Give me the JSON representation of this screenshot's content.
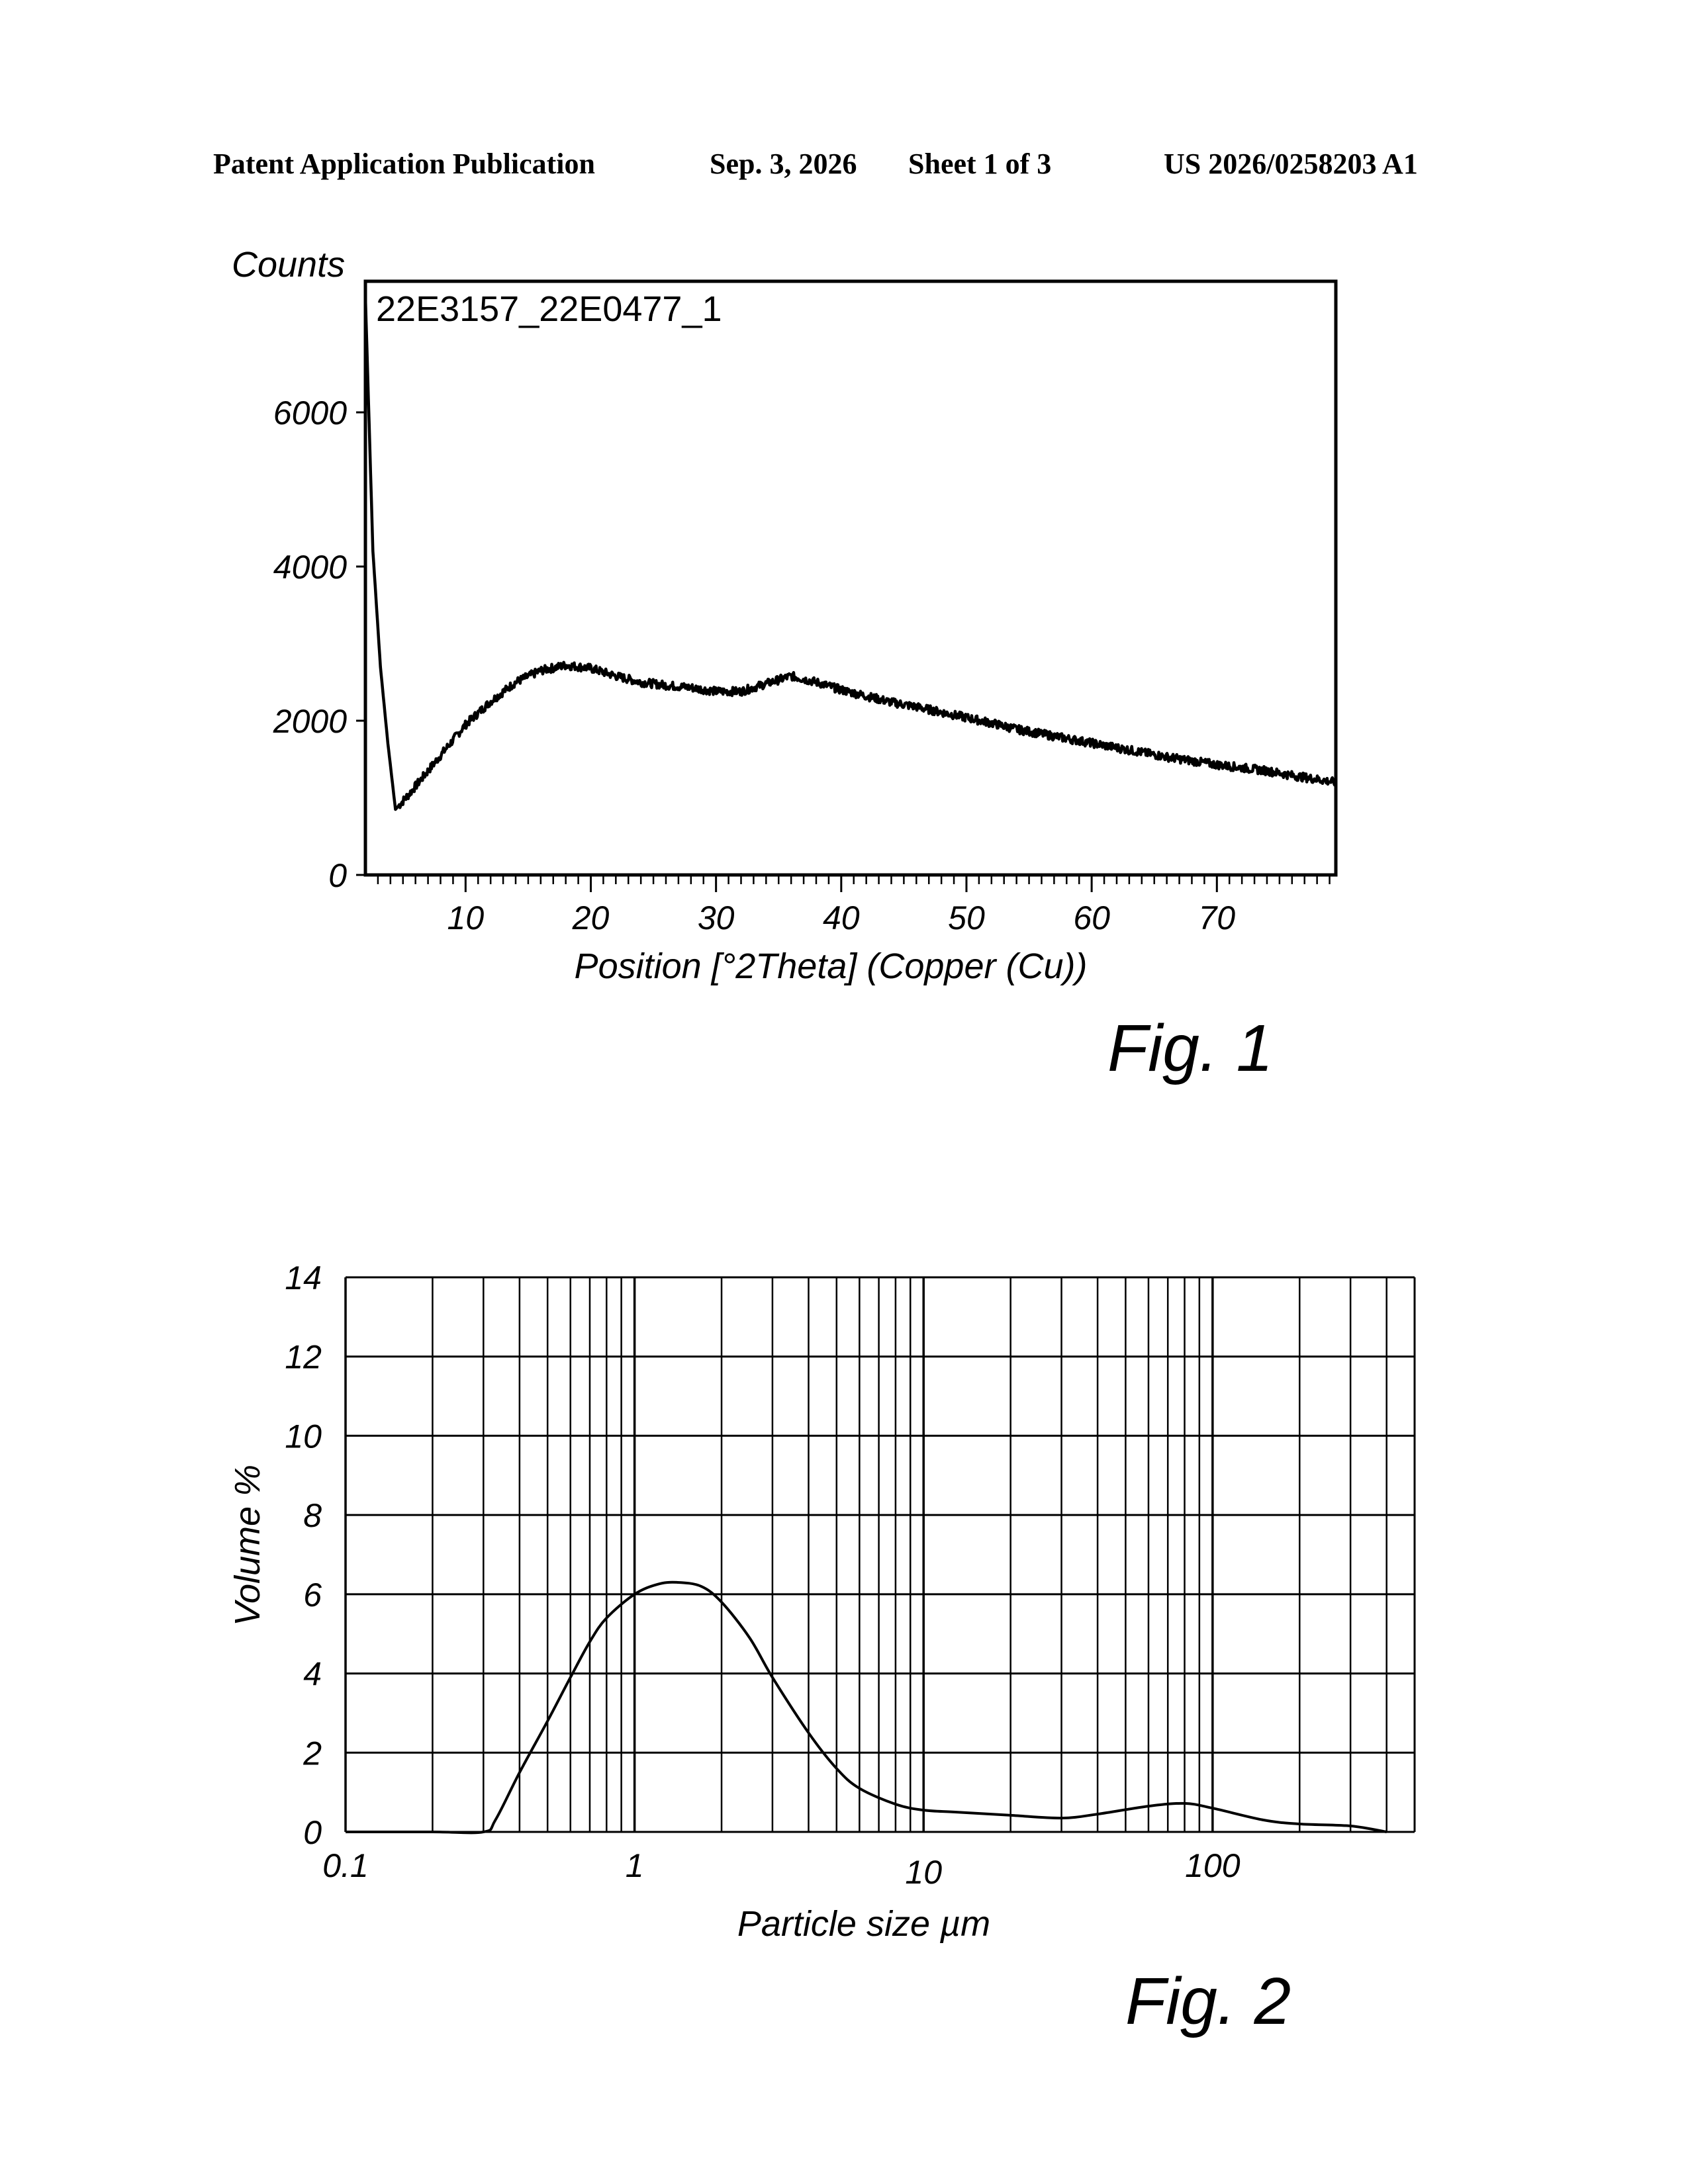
{
  "header": {
    "publication": "Patent Application Publication",
    "date": "Sep. 3, 2026",
    "sheet": "Sheet 1 of 3",
    "number": "US 2026/0258203 A1"
  },
  "figures": [
    {
      "label": "Fig. 1"
    },
    {
      "label": "Fig. 2"
    }
  ],
  "chart_data": [
    {
      "type": "line",
      "sample_label": "22E3157_22E0477_1",
      "xlabel": "Position [°2Theta] (Copper (Cu))",
      "ylabel": "Counts",
      "xlim": [
        2,
        79.5
      ],
      "ylim": [
        0,
        7700
      ],
      "x_ticks": [
        10,
        20,
        30,
        40,
        50,
        60,
        70
      ],
      "y_ticks": [
        0,
        2000,
        4000,
        6000
      ],
      "grid": false,
      "series": [
        {
          "x": [
            2.0,
            2.6,
            3.2,
            3.8,
            4.4,
            5.5,
            7,
            8.5,
            10,
            12,
            14,
            16,
            18,
            20,
            22,
            24,
            26,
            28,
            30,
            32,
            34,
            36,
            38,
            40,
            42,
            44,
            46,
            48,
            50,
            52,
            54,
            56,
            58,
            60,
            62,
            64,
            66,
            68,
            70,
            72,
            74,
            76,
            78,
            79.5
          ],
          "y": [
            7500,
            4200,
            2700,
            1700,
            850,
            1050,
            1350,
            1650,
            1950,
            2250,
            2500,
            2650,
            2720,
            2680,
            2580,
            2500,
            2460,
            2430,
            2380,
            2380,
            2480,
            2580,
            2500,
            2400,
            2320,
            2240,
            2180,
            2110,
            2040,
            1970,
            1890,
            1830,
            1770,
            1710,
            1650,
            1590,
            1530,
            1480,
            1430,
            1390,
            1350,
            1290,
            1240,
            1200
          ]
        }
      ]
    },
    {
      "type": "line",
      "xlabel": "Particle size µm",
      "ylabel": "Volume %",
      "x_scale": "log",
      "xlim": [
        0.1,
        500
      ],
      "ylim": [
        0,
        14
      ],
      "x_ticks": [
        "0.1",
        "1",
        "10",
        "100"
      ],
      "y_ticks": [
        0,
        2,
        4,
        6,
        8,
        10,
        12,
        14
      ],
      "grid": true,
      "series": [
        {
          "x": [
            0.1,
            0.2,
            0.3,
            0.33,
            0.4,
            0.5,
            0.6,
            0.7,
            0.8,
            1.0,
            1.2,
            1.4,
            1.7,
            2.0,
            2.5,
            3.0,
            4.0,
            5.0,
            6.0,
            8.0,
            10,
            13,
            20,
            30,
            40,
            60,
            80,
            100,
            150,
            200,
            300,
            400
          ],
          "y": [
            0,
            0,
            0,
            0.3,
            1.5,
            2.8,
            3.9,
            4.8,
            5.4,
            6.0,
            6.25,
            6.3,
            6.2,
            5.8,
            4.9,
            3.9,
            2.5,
            1.6,
            1.1,
            0.7,
            0.55,
            0.5,
            0.42,
            0.35,
            0.45,
            0.65,
            0.72,
            0.6,
            0.3,
            0.2,
            0.15,
            0.0
          ]
        }
      ]
    }
  ]
}
